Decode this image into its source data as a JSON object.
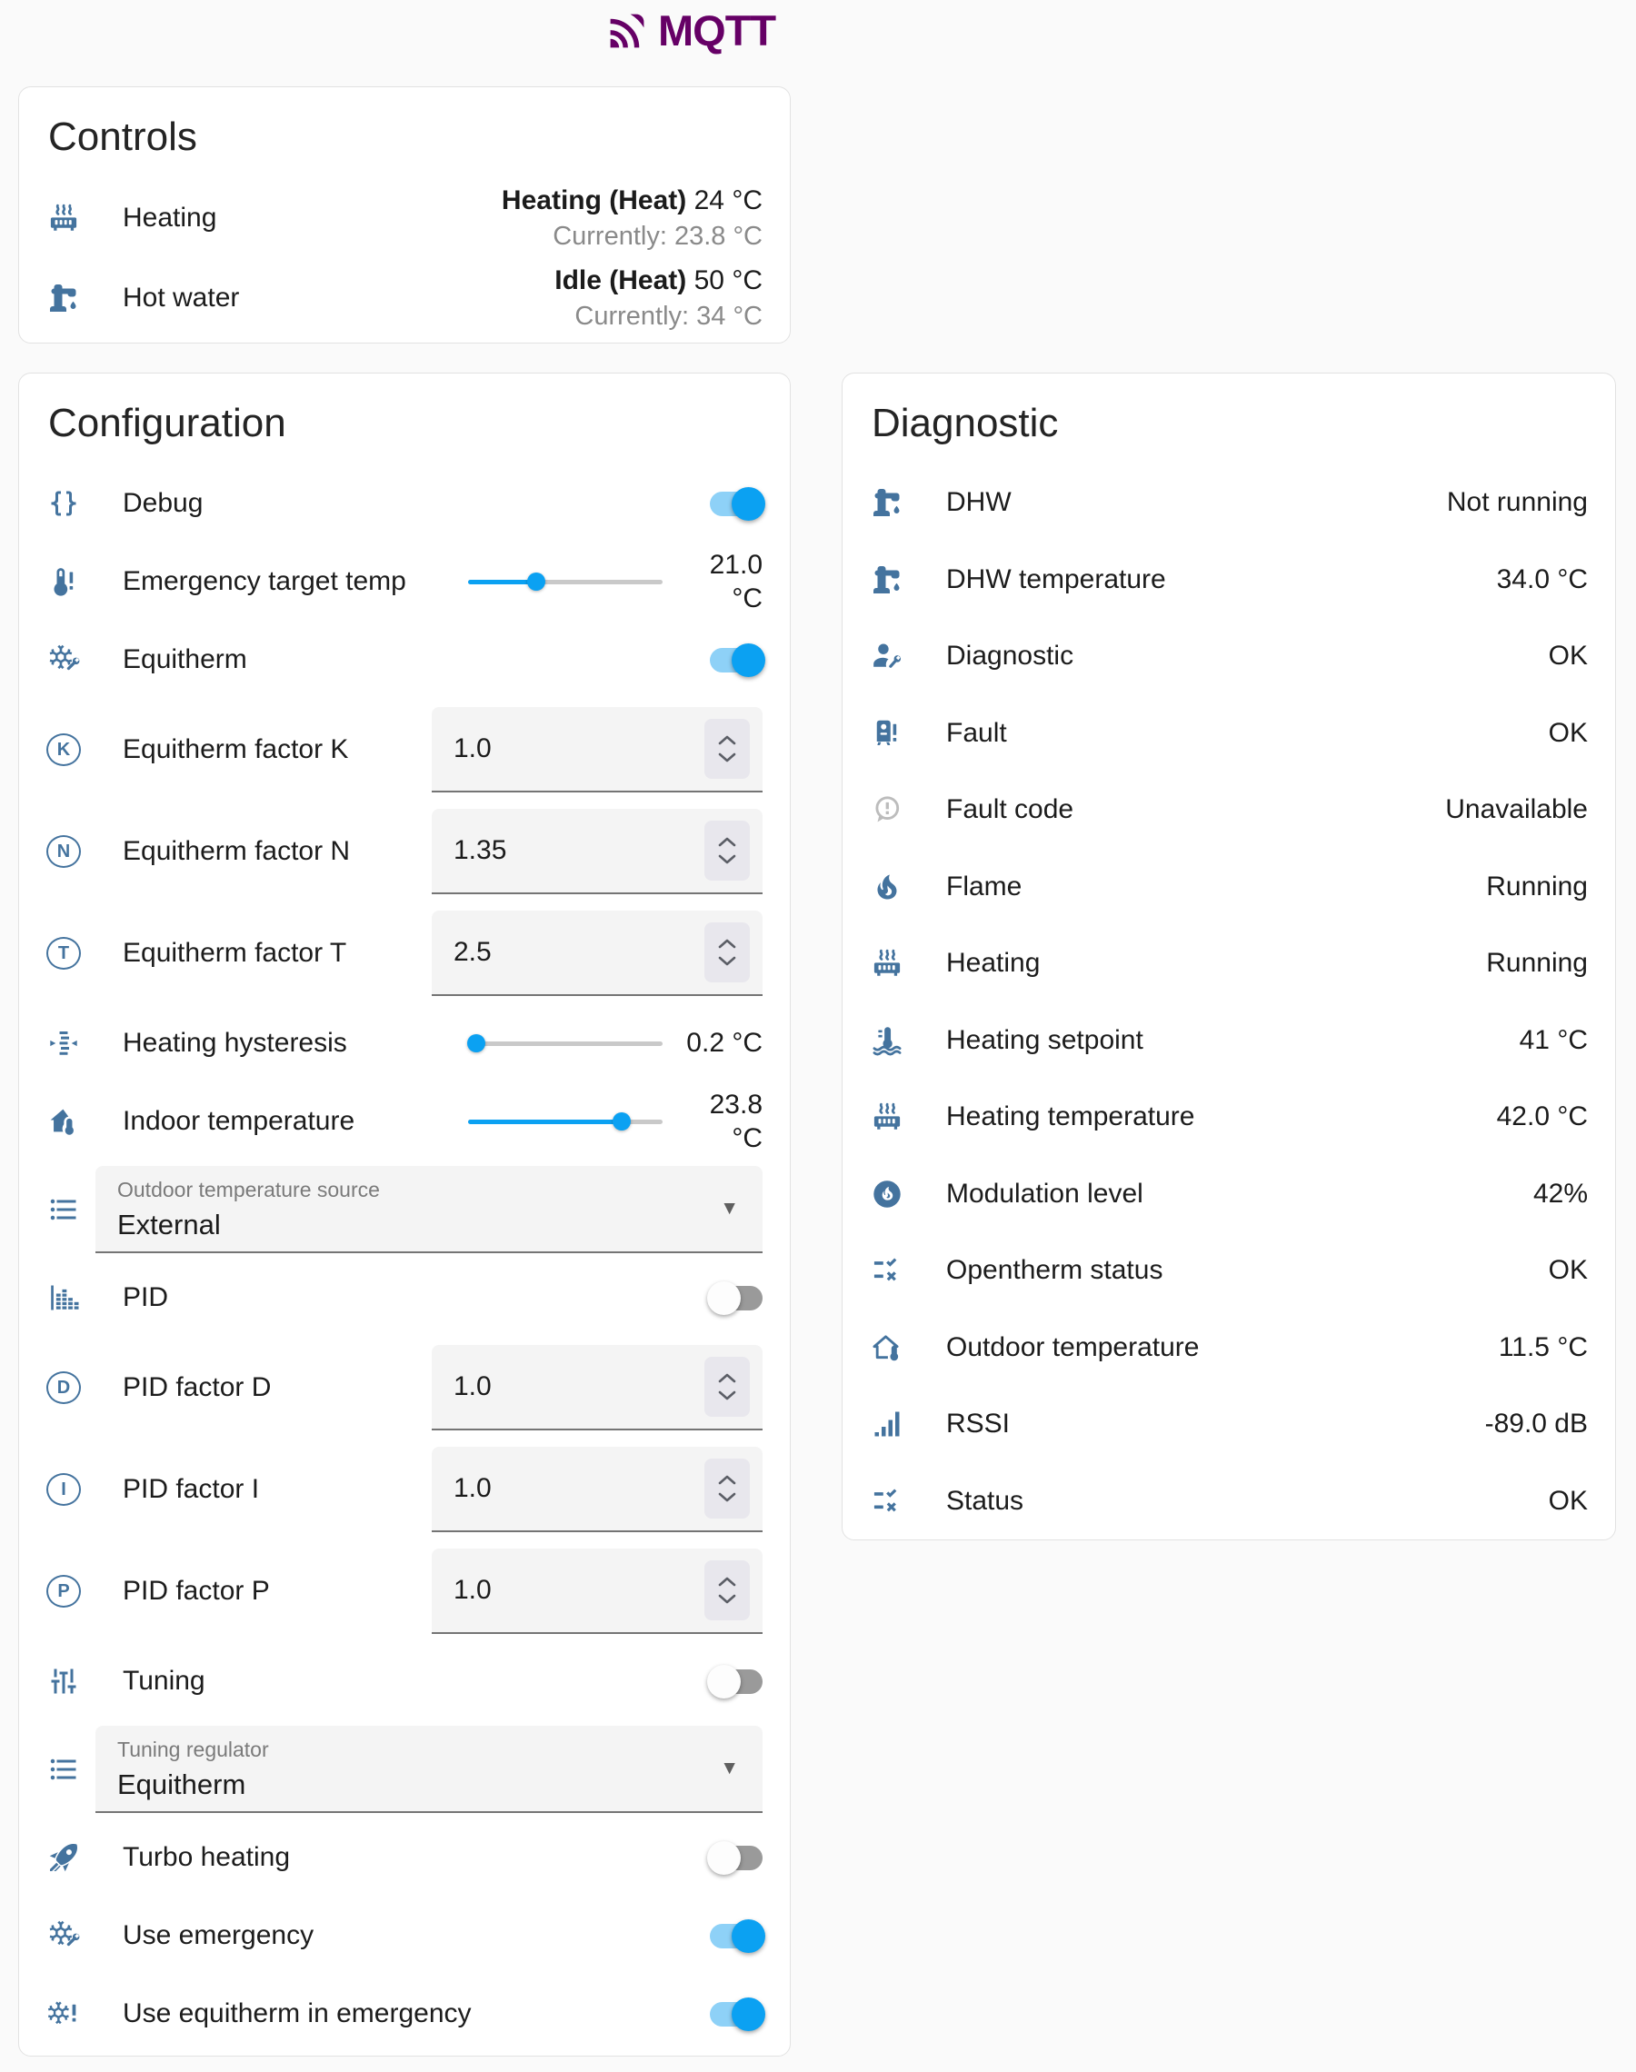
{
  "colors": {
    "primary": "#0ba1f2",
    "icon": "#44739e",
    "logo": "#660066",
    "toggle_track_on": "#8ed1f7",
    "toggle_track_off": "#9a9a9a",
    "slider_track": "#c9c9c9",
    "muted_icon": "#bcbcbc"
  },
  "header": {
    "logo_text": "MQTT"
  },
  "controls_card": {
    "title": "Controls",
    "rows": [
      {
        "icon": "radiator-icon",
        "label": "Heating",
        "state": "Heating (Heat)",
        "temperature": "24 °C",
        "secondary": "Currently: 23.8 °C"
      },
      {
        "icon": "water-pump-icon",
        "label": "Hot water",
        "state": "Idle (Heat)",
        "temperature": "50 °C",
        "secondary": "Currently: 34 °C"
      }
    ]
  },
  "configuration_card": {
    "title": "Configuration",
    "rows": [
      {
        "type": "toggle",
        "icon": "code-braces-icon",
        "label": "Debug",
        "on": true
      },
      {
        "type": "slider",
        "icon": "thermometer-alert-icon",
        "label": "Emergency target temp",
        "value": "21.0 °C",
        "knob_percent": 35
      },
      {
        "type": "toggle",
        "icon": "snowflake-wrench-icon",
        "label": "Equitherm",
        "on": true
      },
      {
        "type": "number",
        "icon": "alpha-k-circle-icon",
        "letter": "K",
        "label": "Equitherm factor K",
        "value": "1.0"
      },
      {
        "type": "number",
        "icon": "alpha-n-circle-icon",
        "letter": "N",
        "label": "Equitherm factor N",
        "value": "1.35"
      },
      {
        "type": "number",
        "icon": "alpha-t-circle-icon",
        "letter": "T",
        "label": "Equitherm factor T",
        "value": "2.5"
      },
      {
        "type": "slider",
        "icon": "hysteresis-icon",
        "label": "Heating hysteresis",
        "value": "0.2 °C",
        "knob_percent": 4
      },
      {
        "type": "slider",
        "icon": "home-thermometer-icon",
        "label": "Indoor temperature",
        "value": "23.8 °C",
        "knob_percent": 79
      },
      {
        "type": "select",
        "icon": "list-icon",
        "label": "Outdoor temperature source",
        "value": "External"
      },
      {
        "type": "toggle",
        "icon": "chart-bar-icon",
        "label": "PID",
        "on": false
      },
      {
        "type": "number",
        "icon": "alpha-d-circle-icon",
        "letter": "D",
        "label": "PID factor D",
        "value": "1.0"
      },
      {
        "type": "number",
        "icon": "alpha-i-circle-icon",
        "letter": "I",
        "label": "PID factor I",
        "value": "1.0"
      },
      {
        "type": "number",
        "icon": "alpha-p-circle-icon",
        "letter": "P",
        "label": "PID factor P",
        "value": "1.0"
      },
      {
        "type": "toggle",
        "icon": "tune-vertical-icon",
        "label": "Tuning",
        "on": false
      },
      {
        "type": "select",
        "icon": "list-icon",
        "label": "Tuning regulator",
        "value": "Equitherm"
      },
      {
        "type": "toggle",
        "icon": "rocket-icon",
        "label": "Turbo heating",
        "on": false
      },
      {
        "type": "toggle",
        "icon": "snowflake-wrench-icon",
        "label": "Use emergency",
        "on": true
      },
      {
        "type": "toggle",
        "icon": "snowflake-alert-icon",
        "label": "Use equitherm in emergency",
        "on": true
      }
    ]
  },
  "diagnostic_card": {
    "title": "Diagnostic",
    "rows": [
      {
        "icon": "water-pump-icon",
        "label": "DHW",
        "value": "Not running"
      },
      {
        "icon": "water-pump-icon",
        "label": "DHW temperature",
        "value": "34.0 °C"
      },
      {
        "icon": "account-wrench-icon",
        "label": "Diagnostic",
        "value": "OK"
      },
      {
        "icon": "water-boiler-alert-icon",
        "label": "Fault",
        "value": "OK"
      },
      {
        "icon": "message-alert-icon",
        "label": "Fault code",
        "value": "Unavailable",
        "muted": true
      },
      {
        "icon": "fire-icon",
        "label": "Flame",
        "value": "Running"
      },
      {
        "icon": "radiator-icon",
        "label": "Heating",
        "value": "Running"
      },
      {
        "icon": "water-thermometer-icon",
        "label": "Heating setpoint",
        "value": "41 °C"
      },
      {
        "icon": "radiator-icon",
        "label": "Heating temperature",
        "value": "42.0 °C"
      },
      {
        "icon": "fire-circle-icon",
        "label": "Modulation level",
        "value": "42%"
      },
      {
        "icon": "order-bool-icon",
        "label": "Opentherm status",
        "value": "OK"
      },
      {
        "icon": "home-thermometer-outline-icon",
        "label": "Outdoor temperature",
        "value": "11.5 °C"
      },
      {
        "icon": "signal-icon",
        "label": "RSSI",
        "value": "-89.0 dB"
      },
      {
        "icon": "order-bool-icon",
        "label": "Status",
        "value": "OK"
      }
    ]
  }
}
